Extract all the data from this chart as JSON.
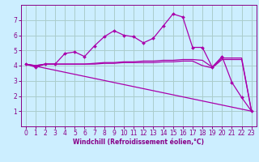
{
  "background_color": "#cceeff",
  "grid_color": "#aacccc",
  "line_color": "#aa00aa",
  "spine_color": "#880088",
  "xlabel": "Windchill (Refroidissement éolien,°C)",
  "xlim": [
    -0.5,
    23.5
  ],
  "ylim": [
    0,
    8
  ],
  "xticks": [
    0,
    1,
    2,
    3,
    4,
    5,
    6,
    7,
    8,
    9,
    10,
    11,
    12,
    13,
    14,
    15,
    16,
    17,
    18,
    19,
    20,
    21,
    22,
    23
  ],
  "yticks": [
    1,
    2,
    3,
    4,
    5,
    6,
    7
  ],
  "tick_fontsize": 5.5,
  "xlabel_fontsize": 5.5,
  "line1_x": [
    0,
    1,
    2,
    3,
    4,
    5,
    6,
    7,
    8,
    9,
    10,
    11,
    12,
    13,
    14,
    15,
    16,
    17,
    18,
    19,
    20,
    21,
    22,
    23
  ],
  "line1_y": [
    4.1,
    3.9,
    4.1,
    4.1,
    4.8,
    4.9,
    4.6,
    5.3,
    5.9,
    6.3,
    6.0,
    5.9,
    5.5,
    5.8,
    6.6,
    7.4,
    7.2,
    5.2,
    5.2,
    3.9,
    4.6,
    2.9,
    1.9,
    1.0
  ],
  "line2_x": [
    0,
    1,
    2,
    3,
    4,
    5,
    6,
    7,
    8,
    9,
    10,
    11,
    12,
    13,
    14,
    15,
    16,
    17,
    18,
    19,
    20,
    21,
    22,
    23
  ],
  "line2_y": [
    4.1,
    4.0,
    4.1,
    4.1,
    4.1,
    4.1,
    4.1,
    4.15,
    4.2,
    4.2,
    4.25,
    4.25,
    4.3,
    4.3,
    4.35,
    4.35,
    4.4,
    4.4,
    4.35,
    3.9,
    4.5,
    4.5,
    4.5,
    1.0
  ],
  "line3_x": [
    0,
    1,
    2,
    3,
    4,
    5,
    6,
    7,
    8,
    9,
    10,
    11,
    12,
    13,
    14,
    15,
    16,
    17,
    18,
    19,
    20,
    21,
    22,
    23
  ],
  "line3_y": [
    4.1,
    4.0,
    4.1,
    4.1,
    4.1,
    4.1,
    4.1,
    4.1,
    4.15,
    4.15,
    4.2,
    4.2,
    4.2,
    4.2,
    4.25,
    4.25,
    4.3,
    4.3,
    4.0,
    3.85,
    4.4,
    4.4,
    4.4,
    1.0
  ],
  "line4_x": [
    0,
    23
  ],
  "line4_y": [
    4.1,
    1.0
  ]
}
